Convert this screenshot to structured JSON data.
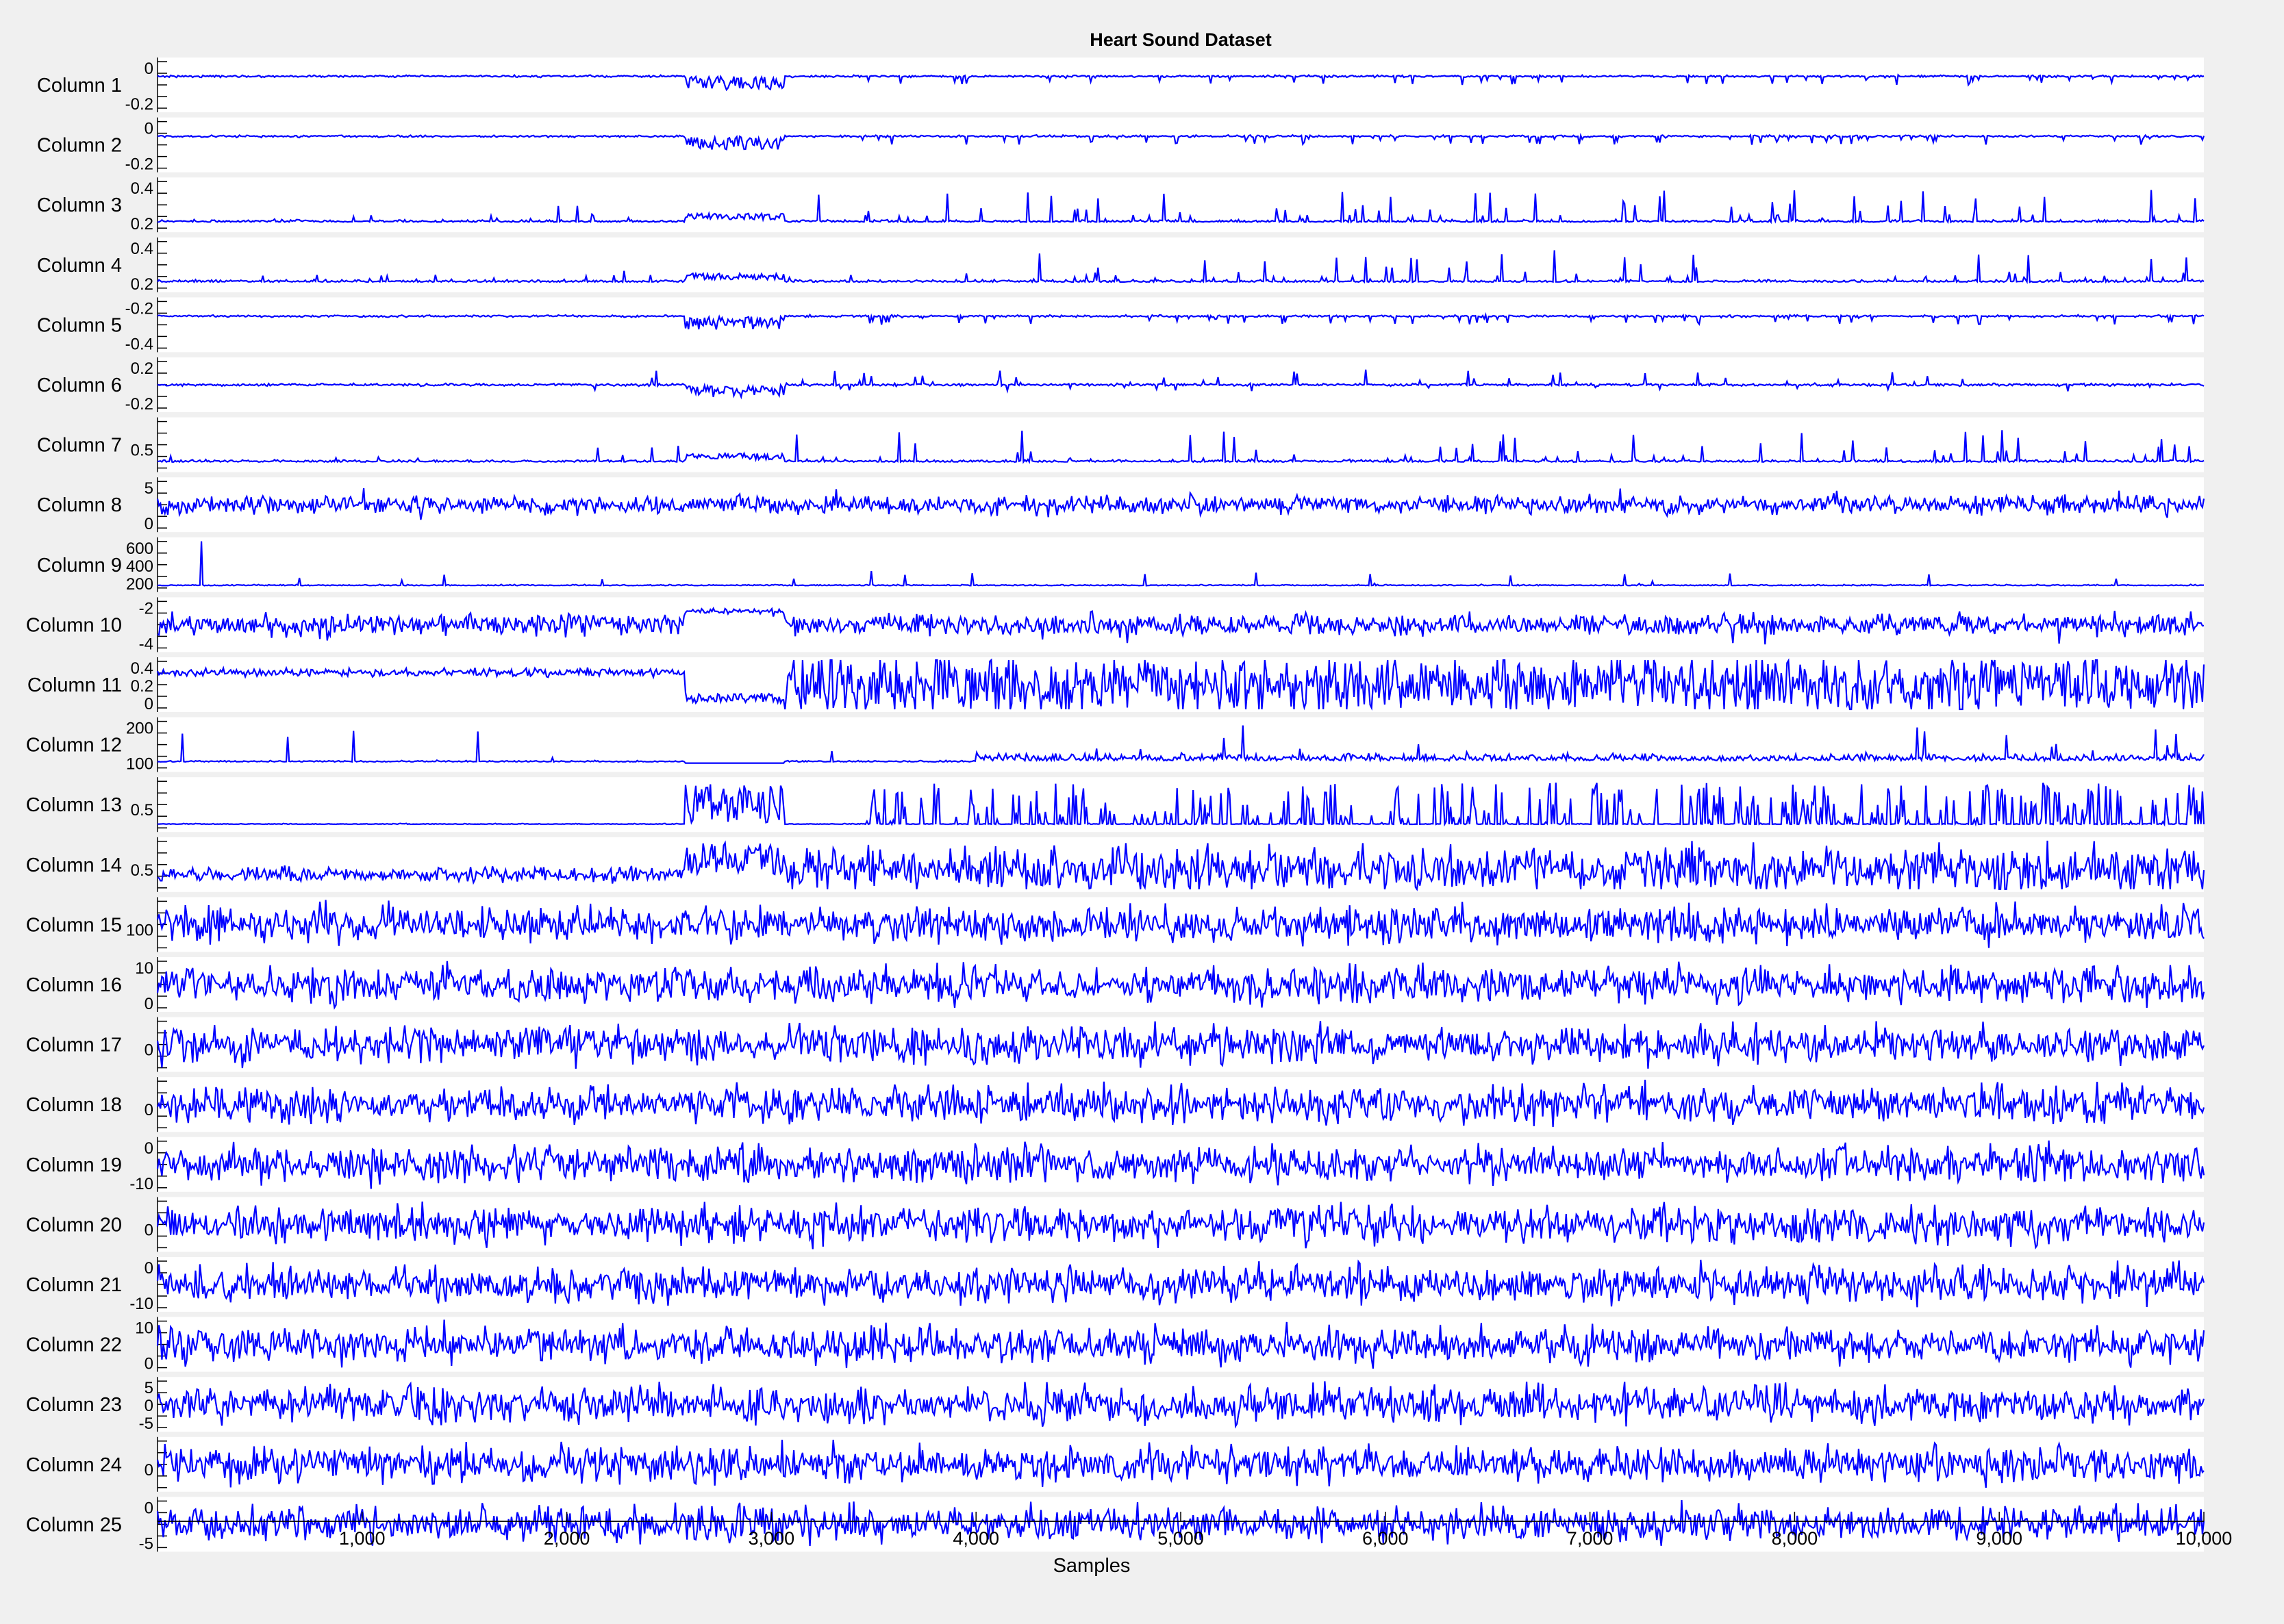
{
  "chart_data": {
    "type": "line",
    "title": "Heart Sound Dataset",
    "xlabel": "Samples",
    "xlim": [
      0,
      10000
    ],
    "xticks": [
      1000,
      2000,
      3000,
      4000,
      5000,
      6000,
      7000,
      8000,
      9000,
      10000
    ],
    "xtick_labels": [
      "1,000",
      "2,000",
      "3,000",
      "4,000",
      "5,000",
      "6,000",
      "7,000",
      "8,000",
      "9,000",
      "10,000"
    ],
    "layout": "stacked-plot",
    "line_color": "#0000ff",
    "background": "#ffffff",
    "series": [
      {
        "name": "Column 1",
        "yticks": [
          "0",
          "-0.2"
        ],
        "style": "neg_spikes",
        "amplitude": 0.3
      },
      {
        "name": "Column 2",
        "yticks": [
          "0",
          "-0.2"
        ],
        "style": "neg_spikes",
        "amplitude": 0.3
      },
      {
        "name": "Column 3",
        "yticks": [
          "0.4",
          "0.2"
        ],
        "style": "pos_spikes",
        "amplitude": 0.5
      },
      {
        "name": "Column 4",
        "yticks": [
          "0.4",
          "0.2"
        ],
        "style": "pos_spikes",
        "amplitude": 0.5
      },
      {
        "name": "Column 5",
        "yticks": [
          "-0.2",
          "-0.4"
        ],
        "style": "neg_spikes",
        "amplitude": 0.5
      },
      {
        "name": "Column 6",
        "yticks": [
          "0.2",
          "-0.2"
        ],
        "style": "mixed_spikes",
        "amplitude": 0.3
      },
      {
        "name": "Column 7",
        "yticks": [
          "0.5"
        ],
        "style": "pos_spikes",
        "amplitude": 0.8
      },
      {
        "name": "Column 8",
        "yticks": [
          "5",
          "0"
        ],
        "style": "noise_sparse",
        "amplitude": 8
      },
      {
        "name": "Column 9",
        "yticks": [
          "600",
          "400",
          "200"
        ],
        "style": "rare_spikes",
        "amplitude": 700
      },
      {
        "name": "Column 10",
        "yticks": [
          "-2",
          "-4"
        ],
        "style": "noise_mid",
        "amplitude": 5
      },
      {
        "name": "Column 11",
        "yticks": [
          "0.4",
          "0.2",
          "0"
        ],
        "style": "dense_osc",
        "amplitude": 0.6
      },
      {
        "name": "Column 12",
        "yticks": [
          "200",
          "100"
        ],
        "style": "rare_spikes_low",
        "amplitude": 250
      },
      {
        "name": "Column 13",
        "yticks": [
          "0.5"
        ],
        "style": "dense_pos_spikes",
        "amplitude": 0.8
      },
      {
        "name": "Column 14",
        "yticks": [
          "0.5"
        ],
        "style": "dense_osc_up",
        "amplitude": 0.8
      },
      {
        "name": "Column 15",
        "yticks": [
          "100"
        ],
        "style": "noise_dense",
        "amplitude": 150
      },
      {
        "name": "Column 16",
        "yticks": [
          "10",
          "0"
        ],
        "style": "noise_dense",
        "amplitude": 15
      },
      {
        "name": "Column 17",
        "yticks": [
          "0"
        ],
        "style": "noise_dense",
        "amplitude": 10
      },
      {
        "name": "Column 18",
        "yticks": [
          "0"
        ],
        "style": "noise_dense",
        "amplitude": 10
      },
      {
        "name": "Column 19",
        "yticks": [
          "0",
          "-10"
        ],
        "style": "noise_dense",
        "amplitude": 15
      },
      {
        "name": "Column 20",
        "yticks": [
          "0"
        ],
        "style": "noise_dense",
        "amplitude": 10
      },
      {
        "name": "Column 21",
        "yticks": [
          "0",
          "-10"
        ],
        "style": "noise_dense",
        "amplitude": 15
      },
      {
        "name": "Column 22",
        "yticks": [
          "10",
          "0"
        ],
        "style": "noise_dense",
        "amplitude": 15
      },
      {
        "name": "Column 23",
        "yticks": [
          "5",
          "0",
          "-5"
        ],
        "style": "noise_dense",
        "amplitude": 10
      },
      {
        "name": "Column 24",
        "yticks": [
          "0"
        ],
        "style": "noise_dense",
        "amplitude": 10
      },
      {
        "name": "Column 25",
        "yticks": [
          "0",
          "-5"
        ],
        "style": "noise_dense",
        "amplitude": 10
      }
    ]
  }
}
